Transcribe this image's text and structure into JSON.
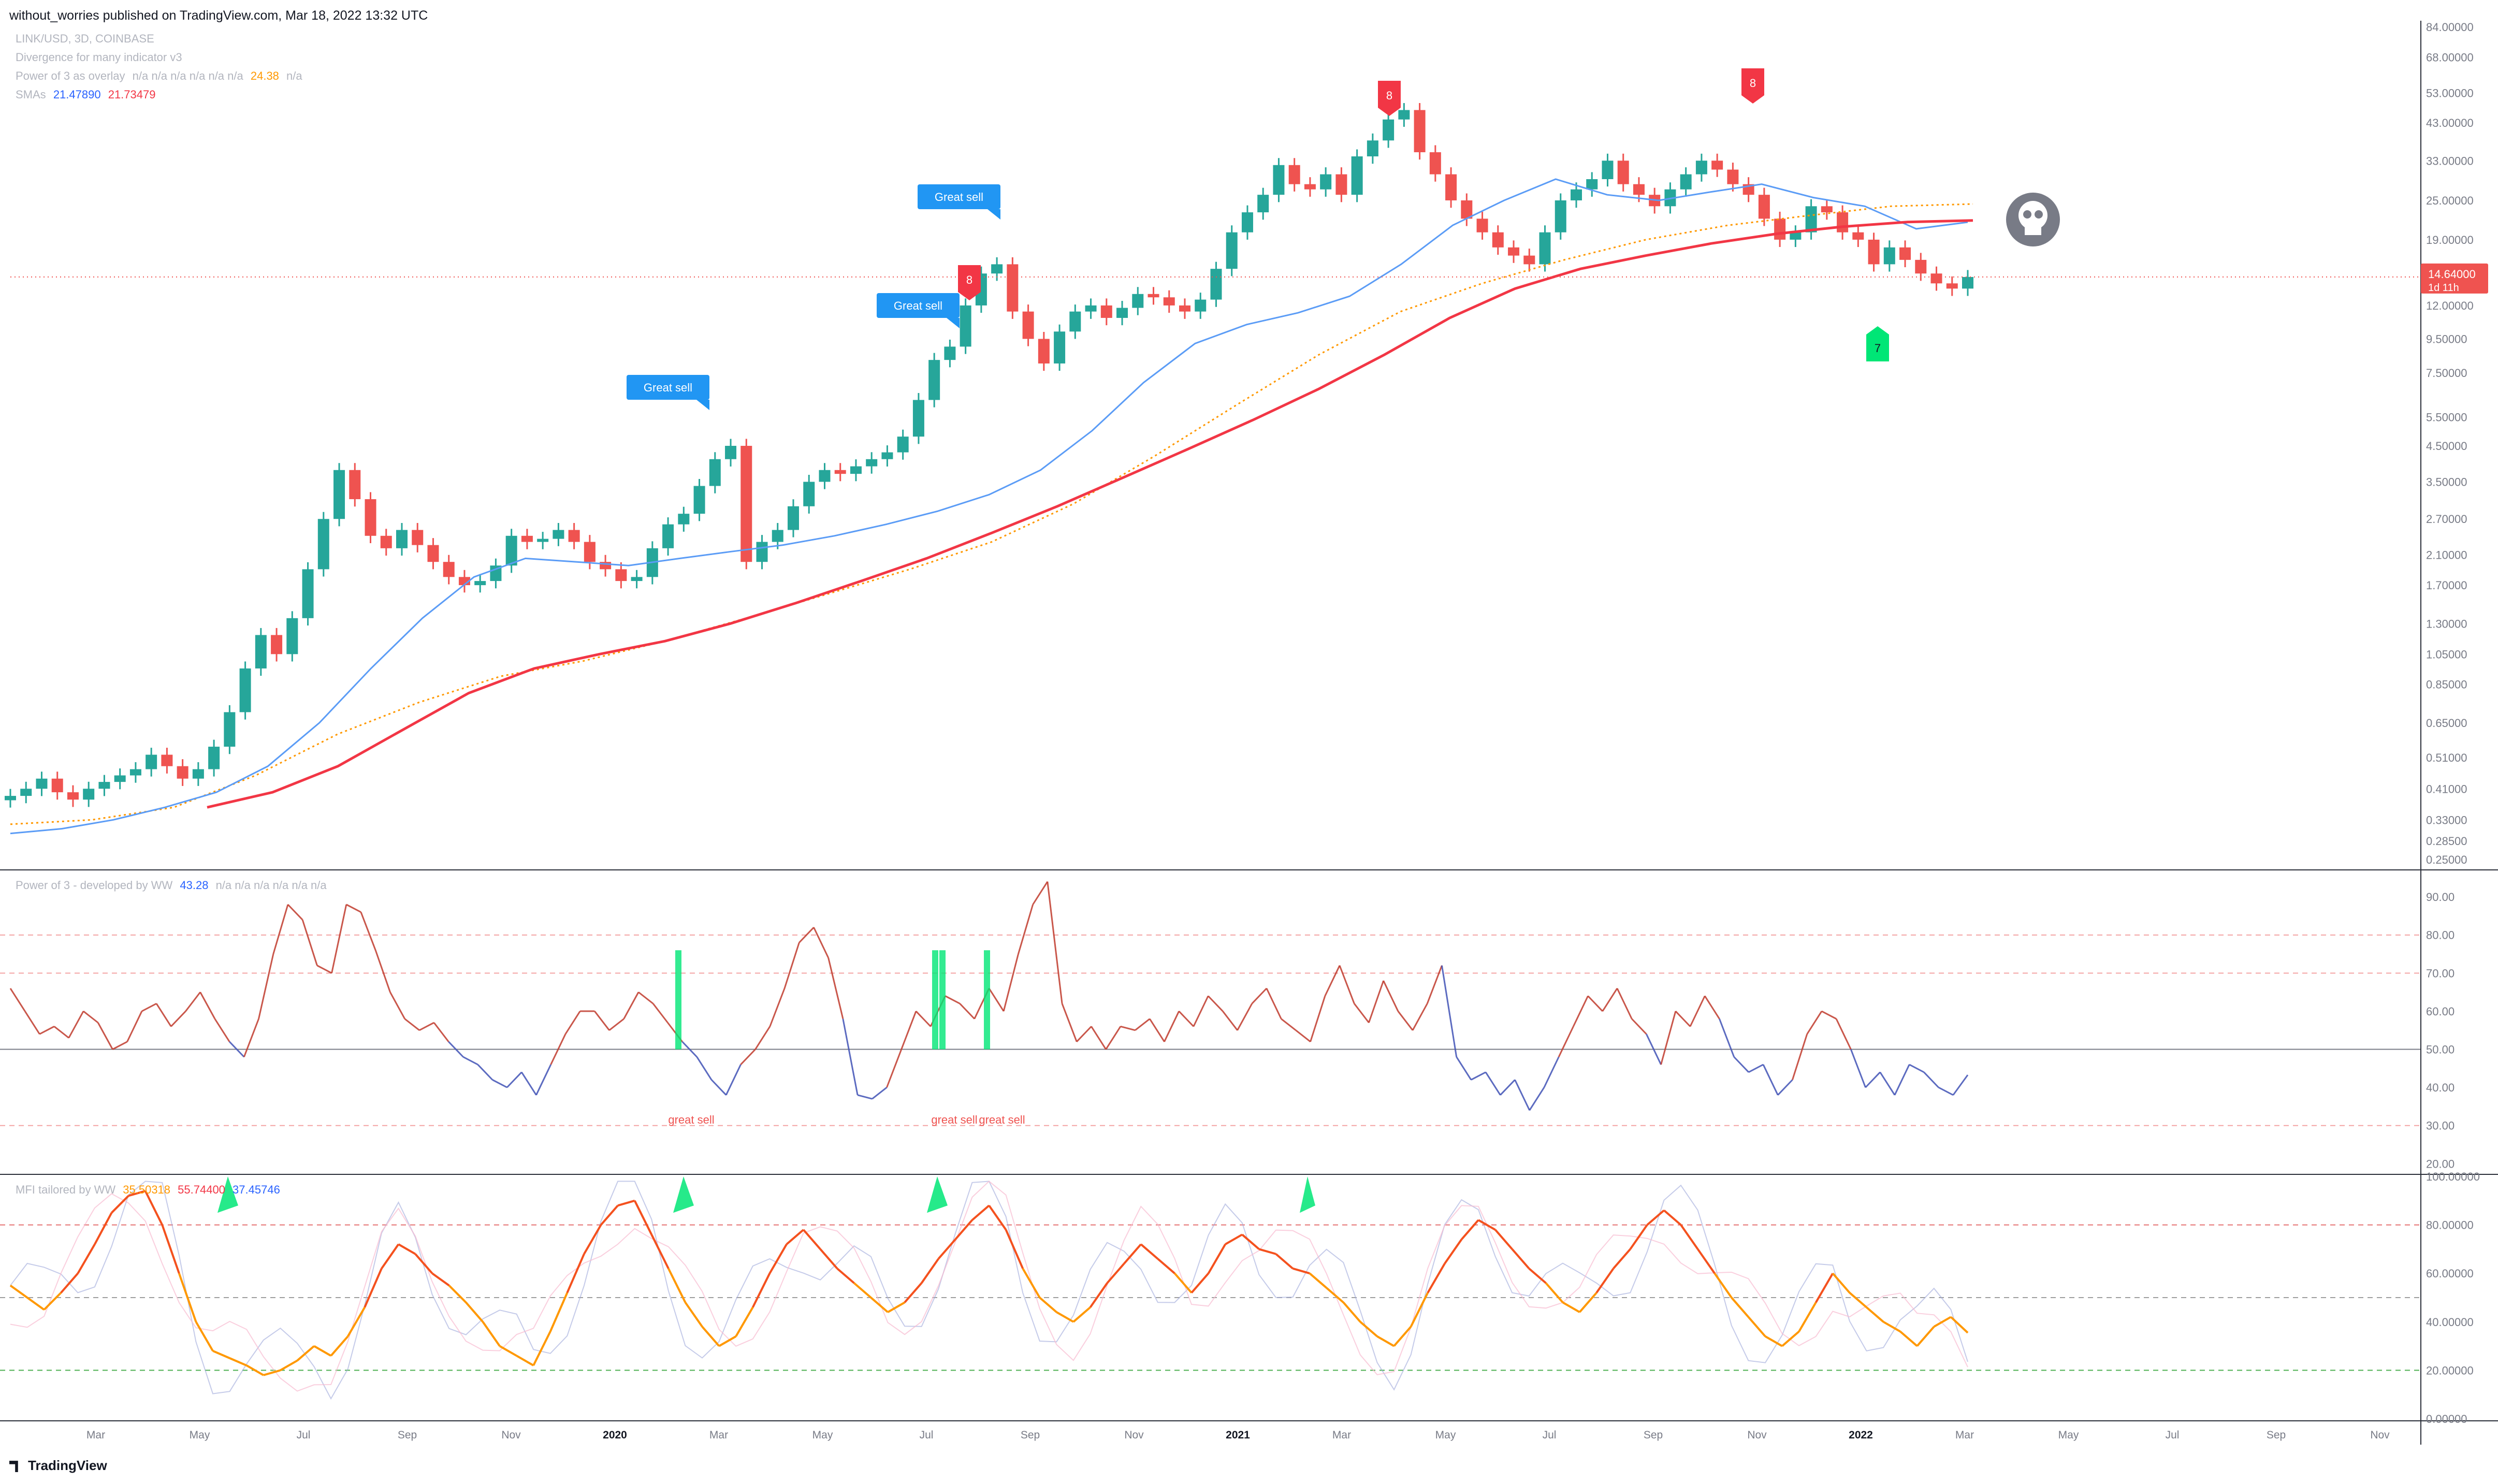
{
  "header": "without_worries published on TradingView.com, Mar 18, 2022 13:32 UTC",
  "footer_brand": "TradingView",
  "legends": {
    "main_title": "LINK/USD, 3D, COINBASE",
    "indicator1": "Divergence for many indicator v3",
    "indicator2_label": "Power of 3 as overlay",
    "indicator2_values": "n/a  n/a  n/a  n/a  n/a  n/a",
    "indicator2_highlight": "24.38",
    "indicator2_tail": "n/a",
    "smas_label": "SMAs",
    "sma_fast": "21.47890",
    "sma_slow": "21.73479",
    "pane2_label": "Power of 3 - developed by WW",
    "pane2_value": "43.28",
    "pane2_tail": "n/a  n/a  n/a  n/a  n/a  n/a",
    "pane3_label": "MFI tailored by WW",
    "pane3_v1": "35.50318",
    "pane3_v2": "55.74400",
    "pane3_v3": "37.45746"
  },
  "colors": {
    "up": "#26a69a",
    "down": "#ef5350",
    "sma_fast": "#5b9cf6",
    "sma_slow": "#f23645",
    "overlay_dotted": "#ff9800",
    "label_blue": "#2196f3",
    "label_red": "#f23645",
    "label_green": "#00e676",
    "mfi_line": "#ff9800",
    "pane2_line": "#9b59b6",
    "grid_dash_red": "#f4a4a4",
    "grid_dash_green": "#4caf50"
  },
  "chart_data": [
    {
      "type": "candlestick",
      "title": "LINK/USD, 3D, COINBASE",
      "yscale": "log",
      "price_axis_ticks": [
        0.25,
        0.285,
        0.33,
        0.41,
        0.51,
        0.65,
        0.85,
        1.05,
        1.3,
        1.7,
        2.1,
        2.7,
        3.5,
        4.5,
        5.5,
        7.5,
        9.5,
        12.0,
        15.0,
        19.0,
        25.0,
        33.0,
        43.0,
        53.0,
        68.0,
        84.0
      ],
      "current_price": "14.64000",
      "countdown": "1d 11h",
      "time_axis_labels": [
        "Mar",
        "May",
        "Jul",
        "Sep",
        "Nov",
        "2020",
        "Mar",
        "May",
        "Jul",
        "Sep",
        "Nov",
        "2021",
        "Mar",
        "May",
        "Jul",
        "Sep",
        "Nov",
        "2022",
        "Mar",
        "May",
        "Jul",
        "Sep",
        "Nov"
      ],
      "price_path": [
        0.39,
        0.41,
        0.44,
        0.4,
        0.38,
        0.41,
        0.43,
        0.45,
        0.47,
        0.52,
        0.48,
        0.44,
        0.47,
        0.55,
        0.7,
        0.95,
        1.2,
        1.05,
        1.35,
        1.9,
        2.7,
        3.8,
        3.1,
        2.4,
        2.2,
        2.5,
        2.25,
        2.0,
        1.8,
        1.7,
        1.75,
        1.95,
        2.4,
        2.3,
        2.35,
        2.5,
        2.3,
        2.0,
        1.9,
        1.75,
        1.8,
        2.2,
        2.6,
        2.8,
        3.4,
        4.1,
        4.5,
        2.0,
        2.3,
        2.5,
        2.95,
        3.5,
        3.8,
        3.7,
        3.9,
        4.1,
        4.3,
        4.8,
        6.2,
        8.2,
        9.0,
        12.0,
        15.0,
        16.0,
        11.5,
        9.5,
        8.0,
        10.0,
        11.5,
        12.0,
        11.0,
        11.8,
        13.0,
        12.7,
        12.0,
        11.5,
        12.5,
        15.5,
        20.0,
        23.0,
        26.0,
        32.0,
        28.0,
        27.0,
        30.0,
        26.0,
        34.0,
        38.0,
        44.0,
        47.0,
        35.0,
        30.0,
        25.0,
        22.0,
        20.0,
        18.0,
        17.0,
        16.0,
        20.0,
        25.0,
        27.0,
        29.0,
        33.0,
        28.0,
        26.0,
        24.0,
        27.0,
        30.0,
        33.0,
        31.0,
        28.0,
        26.0,
        22.0,
        19.0,
        20.0,
        24.0,
        23.0,
        20.0,
        19.0,
        16.0,
        18.0,
        16.5,
        15.0,
        14.0,
        13.5,
        14.64
      ],
      "sma_fast_path": [
        0.3,
        0.31,
        0.33,
        0.36,
        0.4,
        0.48,
        0.65,
        0.95,
        1.35,
        1.8,
        2.05,
        2.0,
        1.95,
        2.05,
        2.15,
        2.25,
        2.4,
        2.6,
        2.85,
        3.2,
        3.8,
        5.0,
        7.0,
        9.2,
        10.5,
        11.4,
        12.8,
        16.0,
        21.0,
        25.0,
        29.0,
        26.0,
        25.0,
        26.5,
        28.0,
        25.5,
        24.0,
        20.5,
        21.47
      ],
      "sma_slow_path": [
        0.36,
        0.4,
        0.48,
        0.62,
        0.8,
        0.95,
        1.05,
        1.15,
        1.3,
        1.5,
        1.75,
        2.05,
        2.45,
        2.95,
        3.6,
        4.4,
        5.4,
        6.7,
        8.5,
        11.0,
        13.5,
        15.5,
        17.0,
        18.5,
        19.8,
        20.8,
        21.5,
        21.73
      ],
      "overlay_dotted_path": [
        0.32,
        0.33,
        0.36,
        0.45,
        0.6,
        0.75,
        0.9,
        1.0,
        1.15,
        1.35,
        1.6,
        1.9,
        2.3,
        3.0,
        4.2,
        6.0,
        8.5,
        11.5,
        14.0,
        16.5,
        19.0,
        21.0,
        22.5,
        24.0,
        24.38
      ],
      "signals": [
        {
          "text": "Great sell",
          "color": "blue"
        },
        {
          "text": "Great sell",
          "color": "blue"
        },
        {
          "text": "Great sell",
          "color": "blue"
        },
        {
          "text": "8",
          "color": "red"
        },
        {
          "text": "8",
          "color": "red"
        },
        {
          "text": "8",
          "color": "red"
        },
        {
          "text": "7",
          "color": "green"
        }
      ]
    },
    {
      "type": "line",
      "title": "Power of 3 - developed by WW",
      "ylim": [
        18,
        96
      ],
      "y_ticks": [
        20.0,
        30.0,
        40.0,
        50.0,
        60.0,
        70.0,
        80.0,
        90.0
      ],
      "hlines": [
        30,
        50,
        70,
        80
      ],
      "annotations": [
        "great sell",
        "great sell",
        "great sell"
      ],
      "values": [
        66,
        60,
        54,
        56,
        53,
        60,
        57,
        50,
        52,
        60,
        62,
        56,
        60,
        65,
        58,
        52,
        48,
        58,
        75,
        88,
        84,
        72,
        70,
        88,
        86,
        76,
        65,
        58,
        55,
        57,
        52,
        48,
        46,
        42,
        40,
        44,
        38,
        46,
        54,
        60,
        60,
        55,
        58,
        65,
        62,
        57,
        52,
        48,
        42,
        38,
        46,
        50,
        56,
        66,
        78,
        82,
        74,
        58,
        38,
        37,
        40,
        50,
        60,
        56,
        64,
        62,
        58,
        66,
        60,
        75,
        88,
        94,
        62,
        52,
        56,
        50,
        56,
        55,
        58,
        52,
        60,
        56,
        64,
        60,
        55,
        62,
        66,
        58,
        55,
        52,
        64,
        72,
        62,
        57,
        68,
        60,
        55,
        62,
        72,
        48,
        42,
        44,
        38,
        42,
        34,
        40,
        48,
        56,
        64,
        60,
        66,
        58,
        54,
        46,
        60,
        56,
        64,
        58,
        48,
        44,
        46,
        38,
        42,
        54,
        60,
        58,
        50,
        40,
        44,
        38,
        46,
        44,
        40,
        38,
        43.28
      ]
    },
    {
      "type": "line",
      "title": "MFI tailored by WW",
      "ylim": [
        0,
        100
      ],
      "y_ticks": [
        0.0,
        20.0,
        40.0,
        60.0,
        80.0,
        100.0
      ],
      "hlines": [
        20,
        50,
        80
      ],
      "values": [
        55,
        50,
        45,
        52,
        60,
        72,
        85,
        92,
        94,
        80,
        60,
        40,
        28,
        25,
        22,
        18,
        20,
        24,
        30,
        26,
        34,
        46,
        62,
        72,
        68,
        60,
        55,
        48,
        40,
        30,
        26,
        22,
        36,
        52,
        68,
        80,
        88,
        90,
        76,
        62,
        48,
        38,
        30,
        34,
        46,
        60,
        72,
        78,
        70,
        62,
        56,
        50,
        44,
        48,
        56,
        66,
        74,
        82,
        88,
        78,
        62,
        50,
        44,
        40,
        46,
        56,
        64,
        72,
        66,
        60,
        52,
        60,
        72,
        76,
        70,
        68,
        62,
        60,
        54,
        48,
        40,
        34,
        30,
        38,
        52,
        64,
        74,
        82,
        78,
        70,
        62,
        56,
        48,
        44,
        52,
        62,
        70,
        80,
        86,
        80,
        70,
        60,
        50,
        42,
        34,
        30,
        36,
        48,
        60,
        52,
        46,
        40,
        36,
        30,
        38,
        42,
        35.5
      ]
    }
  ]
}
